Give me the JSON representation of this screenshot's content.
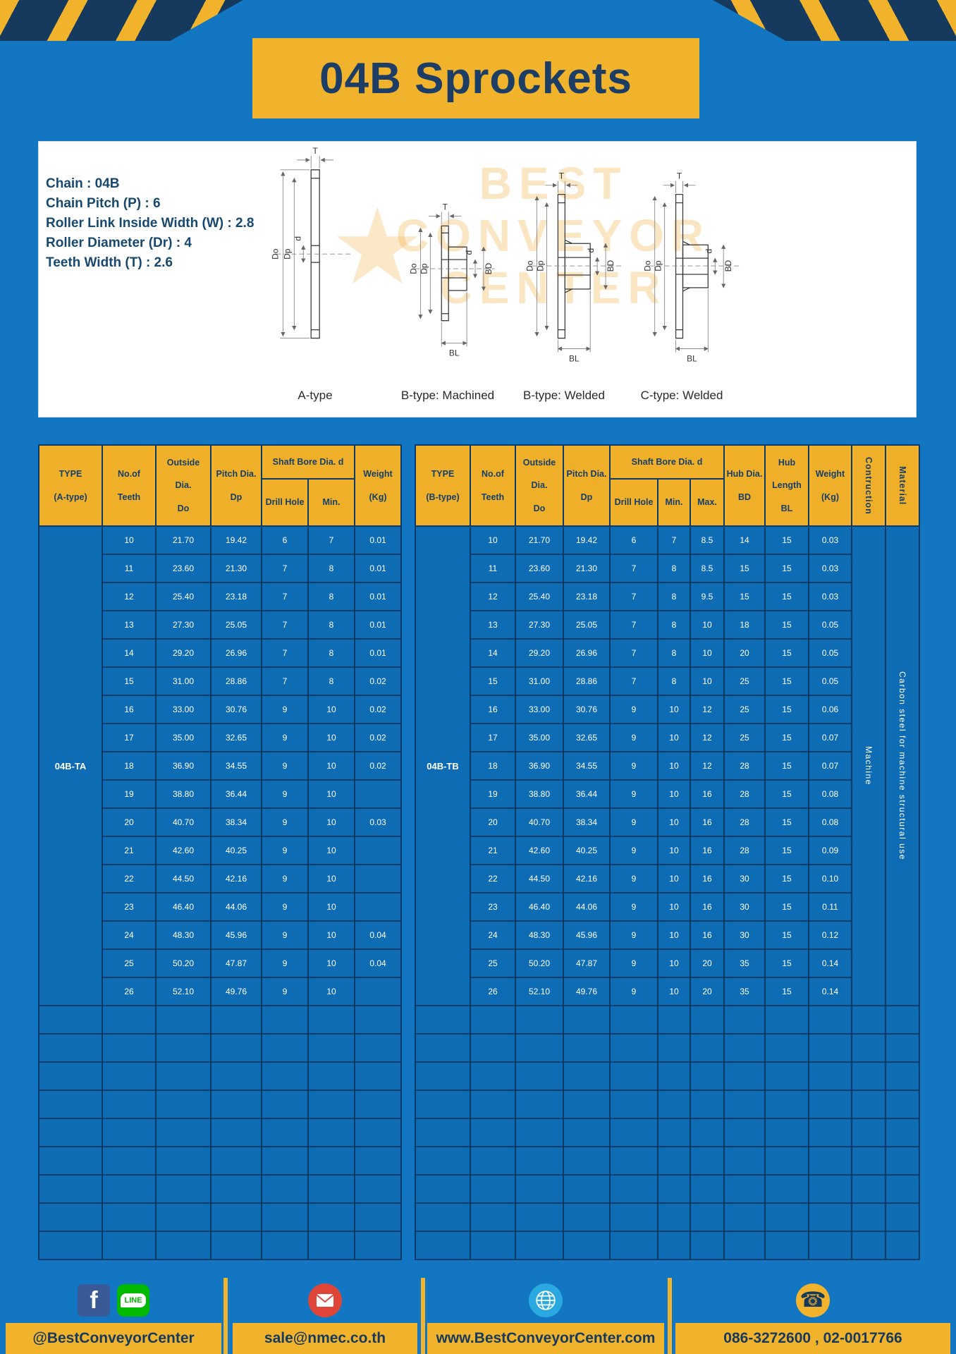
{
  "title": "04B Sprockets",
  "specs": {
    "lines": [
      "Chain  :  04B",
      "Chain Pitch (P)  :  6",
      "Roller Link Inside Width (W)  :  2.8",
      "Roller Diameter (Dr)  :  4",
      "Teeth Width (T)  :  2.6"
    ]
  },
  "diagram": {
    "watermark": {
      "line1": "BEST",
      "line2": "CONVEYOR",
      "line3": "CENTER",
      "star": "★"
    },
    "labels": {
      "T": "T",
      "Do": "Do",
      "Dp": "Dp",
      "d": "d",
      "BD": "BD",
      "BL": "BL"
    },
    "captions": [
      "A-type",
      "B-type: Machined",
      "B-type: Welded",
      "C-type: Welded"
    ]
  },
  "table_a": {
    "type_label": "04B-TA",
    "empty_rows": 9,
    "headers": {
      "type": "TYPE\n\n(A-type)",
      "teeth": "No.of\n\nTeeth",
      "outside": "Outside\n\nDia.\n\nDo",
      "pitch": "Pitch Dia.\n\nDp",
      "shaft_bore": "Shaft Bore Dia. d",
      "drill": "Drill Hole",
      "min": "Min.",
      "weight": "Weight\n\n(Kg)"
    },
    "rows": [
      [
        "10",
        "21.70",
        "19.42",
        "6",
        "7",
        "0.01"
      ],
      [
        "11",
        "23.60",
        "21.30",
        "7",
        "8",
        "0.01"
      ],
      [
        "12",
        "25.40",
        "23.18",
        "7",
        "8",
        "0.01"
      ],
      [
        "13",
        "27.30",
        "25.05",
        "7",
        "8",
        "0.01"
      ],
      [
        "14",
        "29.20",
        "26.96",
        "7",
        "8",
        "0.01"
      ],
      [
        "15",
        "31.00",
        "28.86",
        "7",
        "8",
        "0.02"
      ],
      [
        "16",
        "33.00",
        "30.76",
        "9",
        "10",
        "0.02"
      ],
      [
        "17",
        "35.00",
        "32.65",
        "9",
        "10",
        "0.02"
      ],
      [
        "18",
        "36.90",
        "34.55",
        "9",
        "10",
        "0.02"
      ],
      [
        "19",
        "38.80",
        "36.44",
        "9",
        "10",
        ""
      ],
      [
        "20",
        "40.70",
        "38.34",
        "9",
        "10",
        "0.03"
      ],
      [
        "21",
        "42.60",
        "40.25",
        "9",
        "10",
        ""
      ],
      [
        "22",
        "44.50",
        "42.16",
        "9",
        "10",
        ""
      ],
      [
        "23",
        "46.40",
        "44.06",
        "9",
        "10",
        ""
      ],
      [
        "24",
        "48.30",
        "45.96",
        "9",
        "10",
        "0.04"
      ],
      [
        "25",
        "50.20",
        "47.87",
        "9",
        "10",
        "0.04"
      ],
      [
        "26",
        "52.10",
        "49.76",
        "9",
        "10",
        ""
      ]
    ]
  },
  "table_b": {
    "type_label": "04B-TB",
    "empty_rows": 9,
    "construction_value": "Machine",
    "material_value": "Carbon steel for machine structural use",
    "headers": {
      "type": "TYPE\n\n(B-type)",
      "teeth": "No.of\n\nTeeth",
      "outside": "Outside\n\nDia.\n\nDo",
      "pitch": "Pitch Dia.\n\nDp",
      "shaft_bore": "Shaft Bore Dia. d",
      "drill": "Drill Hole",
      "min": "Min.",
      "max": "Max.",
      "hub_dia": "Hub Dia.\n\nBD",
      "hub_length": "Hub\n\nLength\n\nBL",
      "weight": "Weight\n\n(Kg)",
      "construction": "Contruction",
      "material": "Material"
    },
    "rows": [
      [
        "10",
        "21.70",
        "19.42",
        "6",
        "7",
        "8.5",
        "14",
        "15",
        "0.03"
      ],
      [
        "11",
        "23.60",
        "21.30",
        "7",
        "8",
        "8.5",
        "15",
        "15",
        "0.03"
      ],
      [
        "12",
        "25.40",
        "23.18",
        "7",
        "8",
        "9.5",
        "15",
        "15",
        "0.03"
      ],
      [
        "13",
        "27.30",
        "25.05",
        "7",
        "8",
        "10",
        "18",
        "15",
        "0.05"
      ],
      [
        "14",
        "29.20",
        "26.96",
        "7",
        "8",
        "10",
        "20",
        "15",
        "0.05"
      ],
      [
        "15",
        "31.00",
        "28.86",
        "7",
        "8",
        "10",
        "25",
        "15",
        "0.05"
      ],
      [
        "16",
        "33.00",
        "30.76",
        "9",
        "10",
        "12",
        "25",
        "15",
        "0.06"
      ],
      [
        "17",
        "35.00",
        "32.65",
        "9",
        "10",
        "12",
        "25",
        "15",
        "0.07"
      ],
      [
        "18",
        "36.90",
        "34.55",
        "9",
        "10",
        "12",
        "28",
        "15",
        "0.07"
      ],
      [
        "19",
        "38.80",
        "36.44",
        "9",
        "10",
        "16",
        "28",
        "15",
        "0.08"
      ],
      [
        "20",
        "40.70",
        "38.34",
        "9",
        "10",
        "16",
        "28",
        "15",
        "0.08"
      ],
      [
        "21",
        "42.60",
        "40.25",
        "9",
        "10",
        "16",
        "28",
        "15",
        "0.09"
      ],
      [
        "22",
        "44.50",
        "42.16",
        "9",
        "10",
        "16",
        "30",
        "15",
        "0.10"
      ],
      [
        "23",
        "46.40",
        "44.06",
        "9",
        "10",
        "16",
        "30",
        "15",
        "0.11"
      ],
      [
        "24",
        "48.30",
        "45.96",
        "9",
        "10",
        "16",
        "30",
        "15",
        "0.12"
      ],
      [
        "25",
        "50.20",
        "47.87",
        "9",
        "10",
        "20",
        "35",
        "15",
        "0.14"
      ],
      [
        "26",
        "52.10",
        "49.76",
        "9",
        "10",
        "20",
        "35",
        "15",
        "0.14"
      ]
    ]
  },
  "footer": {
    "facebook_letter": "f",
    "line_label": "LINE",
    "social_text": "@BestConveyorCenter",
    "email_text": "sale@nmec.co.th",
    "website_text": "www.BestConveyorCenter.com",
    "phone_text": "086-3272600 , 02-0017766",
    "icons": [
      "facebook-icon",
      "line-icon",
      "email-icon",
      "globe-icon",
      "phone-icon"
    ]
  },
  "colors": {
    "page_blue": "#1276C3",
    "cell_blue": "#0E6CB5",
    "navy": "#16395E",
    "yellow": "#F1B32B",
    "grid_border": "#0B3C69"
  }
}
